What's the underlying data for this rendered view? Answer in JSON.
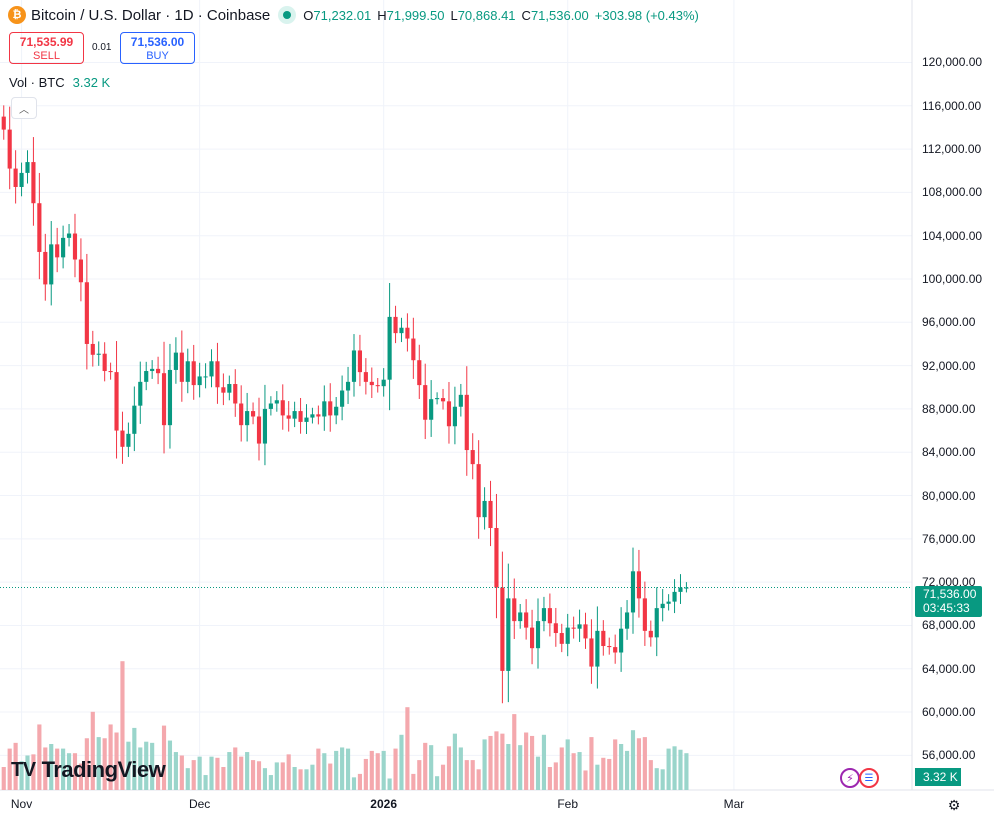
{
  "header": {
    "coin_icon": "bitcoin-icon",
    "title": "Bitcoin / U.S. Dollar · 1D · Coinbase",
    "ohlc": {
      "o_label": "O",
      "o": "71,232.01",
      "h_label": "H",
      "h": "71,999.50",
      "l_label": "L",
      "l": "70,868.41",
      "c_label": "C",
      "c": "71,536.00"
    },
    "change": "+303.98 (+0.43%)"
  },
  "trade": {
    "sell_price": "71,535.99",
    "sell_label": "SELL",
    "spread": "0.01",
    "buy_price": "71,536.00",
    "buy_label": "BUY"
  },
  "volume_legend": {
    "label": "Vol · BTC",
    "value": "3.32 K"
  },
  "last_price": {
    "price": "71,536.00",
    "countdown": "03:45:33"
  },
  "volume_tag": "3.32 K",
  "logo": "TradingView",
  "colors": {
    "up": "#089981",
    "down": "#f23645",
    "up_vol": "#9ad5cb",
    "down_vol": "#f4a8ad"
  },
  "chart_data": {
    "type": "candlestick",
    "title": "Bitcoin / U.S. Dollar · 1D · Coinbase",
    "y_ticks": [
      "120,000.00",
      "116,000.00",
      "112,000.00",
      "108,000.00",
      "104,000.00",
      "100,000.00",
      "96,000.00",
      "92,000.00",
      "88,000.00",
      "84,000.00",
      "80,000.00",
      "76,000.00",
      "72,000.00",
      "68,000.00",
      "64,000.00",
      "60,000.00",
      "56,000.00"
    ],
    "y_tick_values": [
      120000,
      116000,
      112000,
      108000,
      104000,
      100000,
      96000,
      92000,
      88000,
      84000,
      80000,
      76000,
      72000,
      68000,
      64000,
      60000,
      56000
    ],
    "x_ticks": [
      {
        "label": "Nov",
        "date": "2025-11-01"
      },
      {
        "label": "Dec",
        "date": "2025-12-01"
      },
      {
        "label": "2026",
        "date": "2026-01-01"
      },
      {
        "label": "Feb",
        "date": "2026-02-01"
      },
      {
        "label": "Mar",
        "date": "2026-03-01"
      }
    ],
    "ylim": [
      52800,
      123000
    ],
    "x_range": [
      "2025-10-25",
      "2026-03-31"
    ],
    "grid": true,
    "closes": [
      110500,
      111200,
      113500,
      115000,
      113800,
      110200,
      108500,
      109800,
      110800,
      107000,
      102500,
      99500,
      103200,
      102000,
      103800,
      104200,
      101800,
      99700,
      94000,
      93000,
      93100,
      91500,
      91400,
      86000,
      84500,
      85700,
      88300,
      90500,
      91500,
      91700,
      91300,
      86500,
      91600,
      93200,
      90500,
      92400,
      90200,
      91000,
      91000,
      92400,
      90000,
      89500,
      90300,
      88500,
      86500,
      87800,
      87300,
      84800,
      88000,
      88500,
      88800,
      87400,
      87100,
      87800,
      86800,
      87200,
      87500,
      87300,
      88700,
      87400,
      88200,
      89700,
      90500,
      93400,
      91400,
      90500,
      90200,
      90100,
      90700,
      96500,
      95000,
      95500,
      94500,
      92500,
      90200,
      87000,
      88900,
      89000,
      88700,
      86400,
      88200,
      89300,
      84200,
      82900,
      78000,
      79500,
      77000,
      71500,
      63800,
      70500,
      68400,
      69200,
      67800,
      65900,
      68400,
      69600,
      68200,
      67300,
      66300,
      67800,
      67700,
      68100,
      66800,
      64200,
      67500,
      66100,
      66000,
      65500,
      67700,
      69200,
      73000,
      70500,
      67500,
      66900,
      69600,
      70000,
      70200,
      71100,
      71500,
      71500
    ],
    "series_start_date": "2025-10-25",
    "volumes": [
      3.0,
      2.2,
      3.5,
      2.4,
      2.0,
      3.6,
      4.1,
      2.5,
      3.0,
      3.1,
      5.7,
      3.7,
      4.0,
      3.6,
      3.6,
      3.2,
      3.2,
      2.3,
      4.5,
      6.8,
      4.6,
      4.5,
      5.7,
      5.0,
      11.2,
      4.2,
      5.4,
      3.7,
      4.2,
      4.1,
      2.0,
      5.6,
      4.3,
      3.3,
      3.0,
      1.9,
      2.6,
      2.9,
      1.3,
      2.9,
      2.8,
      2.0,
      3.3,
      3.7,
      2.9,
      3.3,
      2.6,
      2.5,
      1.9,
      1.3,
      2.4,
      2.4,
      3.1,
      2.0,
      1.8,
      1.8,
      2.2,
      3.6,
      3.2,
      2.3,
      3.4,
      3.7,
      3.6,
      1.1,
      1.4,
      2.7,
      3.4,
      3.2,
      3.4,
      1.0,
      3.6,
      4.8,
      7.2,
      1.4,
      2.6,
      4.1,
      3.9,
      1.2,
      2.2,
      3.8,
      4.9,
      3.7,
      2.6,
      2.6,
      1.8,
      4.4,
      4.7,
      5.1,
      4.9,
      4.0,
      6.6,
      3.9,
      5.0,
      4.7,
      2.9,
      4.8,
      2.0,
      2.4,
      3.7,
      4.4,
      3.2,
      3.3,
      1.7,
      4.6,
      2.2,
      2.8,
      2.7,
      4.4,
      4.0,
      3.4,
      5.2,
      4.5,
      4.6,
      2.6,
      1.9,
      1.8,
      3.6,
      3.8,
      3.5,
      3.2
    ]
  }
}
